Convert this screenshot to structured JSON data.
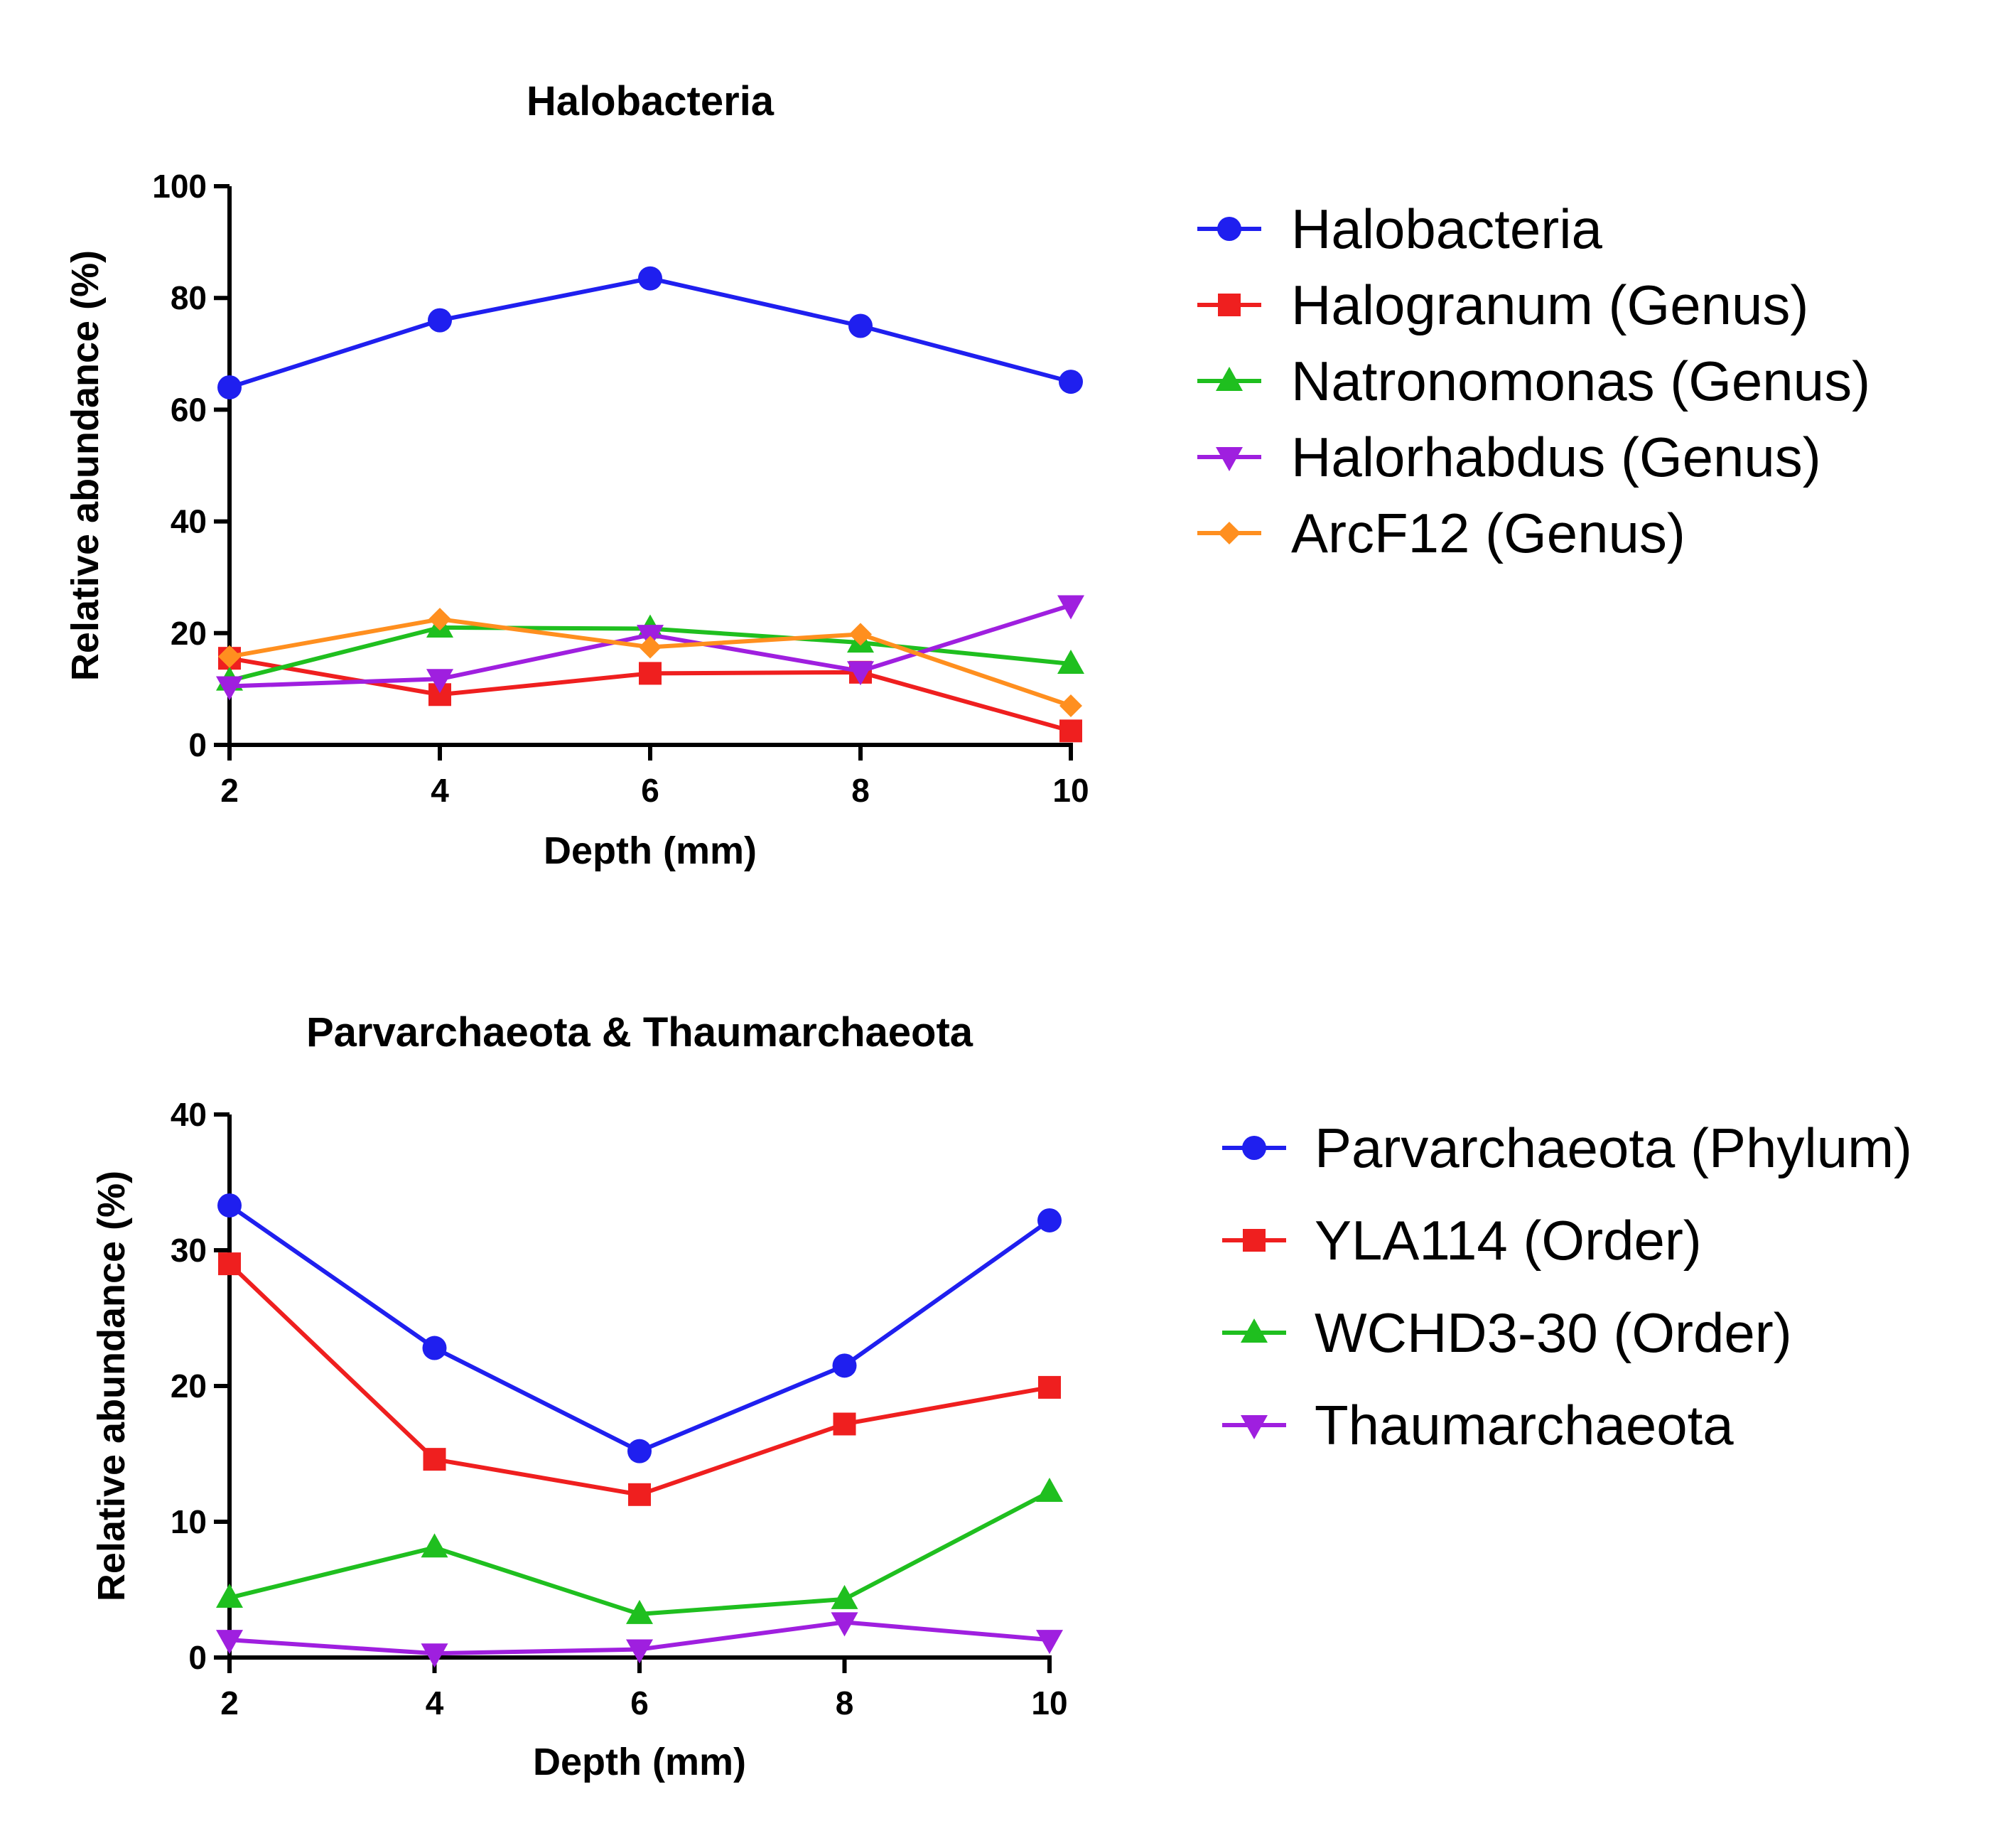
{
  "chart_data": [
    {
      "type": "line",
      "title": "Halobacteria",
      "xlabel": "Depth (mm)",
      "ylabel": "Relative abundance (%)",
      "x": [
        2,
        4,
        6,
        8,
        10
      ],
      "xlim": [
        2,
        10
      ],
      "ylim": [
        0,
        100
      ],
      "xticks": [
        "2",
        "4",
        "6",
        "8",
        "10"
      ],
      "yticks": [
        "0",
        "20",
        "40",
        "60",
        "80",
        "100"
      ],
      "grid": false,
      "legend": "right",
      "series": [
        {
          "name": "Halobacteria",
          "color": "#1f1fef",
          "marker": "circle",
          "values": [
            64,
            76,
            83.5,
            75,
            65
          ]
        },
        {
          "name": "Halogranum (Genus)",
          "color": "#ef1f1f",
          "marker": "square",
          "values": [
            15.5,
            9,
            12.8,
            13,
            2.5
          ]
        },
        {
          "name": "Natronomonas (Genus)",
          "color": "#1fbf1f",
          "marker": "triangle-up",
          "values": [
            11.5,
            21,
            20.8,
            18.3,
            14.5
          ]
        },
        {
          "name": "Halorhabdus (Genus)",
          "color": "#9f1fdf",
          "marker": "triangle-down",
          "values": [
            10.5,
            11.8,
            19.7,
            13.2,
            25
          ]
        },
        {
          "name": "ArcF12 (Genus)",
          "color": "#ff8f1f",
          "marker": "diamond",
          "values": [
            15.8,
            22.5,
            17.5,
            19.8,
            7
          ]
        }
      ]
    },
    {
      "type": "line",
      "title": "Parvarchaeota & Thaumarchaeota",
      "xlabel": "Depth (mm)",
      "ylabel": "Relative abundance (%)",
      "x": [
        2,
        4,
        6,
        8,
        10
      ],
      "xlim": [
        2,
        10
      ],
      "ylim": [
        0,
        40
      ],
      "xticks": [
        "2",
        "4",
        "6",
        "8",
        "10"
      ],
      "yticks": [
        "0",
        "10",
        "20",
        "30",
        "40"
      ],
      "grid": false,
      "legend": "right",
      "series": [
        {
          "name": "Parvarchaeota (Phylum)",
          "color": "#1f1fef",
          "marker": "circle",
          "values": [
            33.3,
            22.8,
            15.2,
            21.5,
            32.2
          ]
        },
        {
          "name": "YLA114 (Order)",
          "color": "#ef1f1f",
          "marker": "square",
          "values": [
            29,
            14.6,
            12,
            17.2,
            19.9
          ]
        },
        {
          "name": "WCHD3-30 (Order)",
          "color": "#1fbf1f",
          "marker": "triangle-up",
          "values": [
            4.4,
            8.1,
            3.2,
            4.3,
            12.2
          ]
        },
        {
          "name": "Thaumarchaeota",
          "color": "#9f1fdf",
          "marker": "triangle-down",
          "values": [
            1.3,
            0.3,
            0.6,
            2.6,
            1.3
          ]
        }
      ]
    }
  ]
}
